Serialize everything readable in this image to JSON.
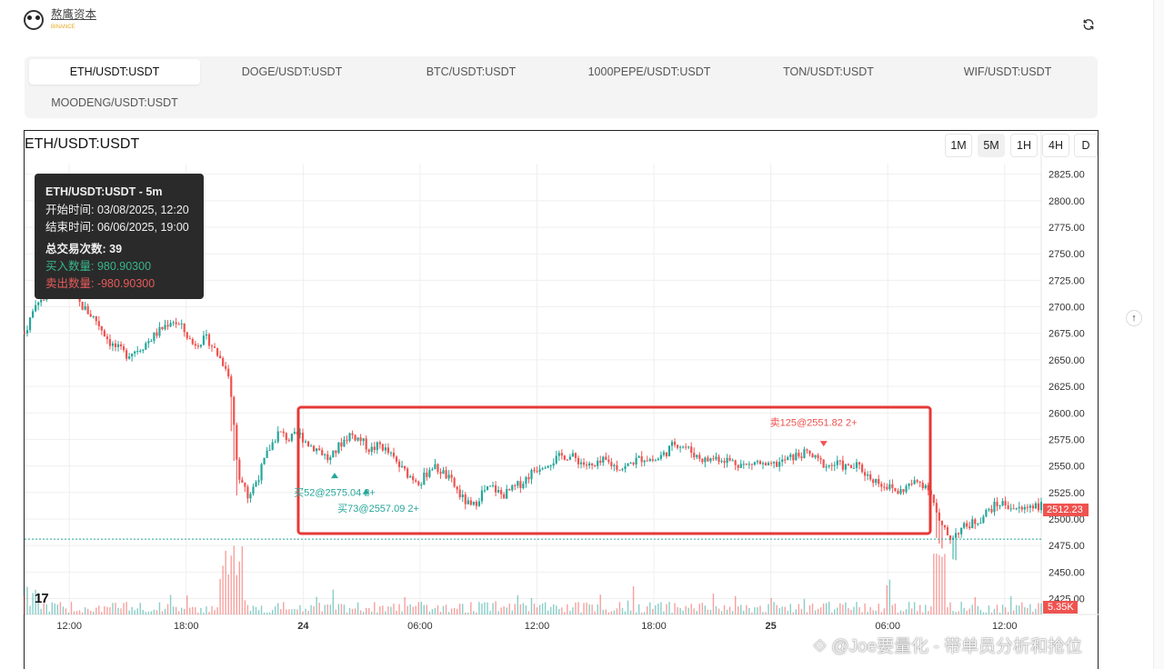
{
  "brand": {
    "name": "熬鹰资本",
    "badge": "BINANCE"
  },
  "tabs": [
    {
      "label": "ETH/USDT:USDT",
      "active": true
    },
    {
      "label": "DOGE/USDT:USDT"
    },
    {
      "label": "BTC/USDT:USDT"
    },
    {
      "label": "1000PEPE/USDT:USDT"
    },
    {
      "label": "TON/USDT:USDT"
    },
    {
      "label": "WIF/USDT:USDT"
    },
    {
      "label": "MOODENG/USDT:USDT"
    }
  ],
  "chart": {
    "title": "ETH/USDT:USDT",
    "timeframes": [
      "1M",
      "5M",
      "1H",
      "4H",
      "D"
    ],
    "active_timeframe": "5M",
    "last_price": "2512.23",
    "volume_label": "5.35K",
    "logo": "17"
  },
  "tooltip": {
    "title": "ETH/USDT:USDT - 5m",
    "start": "开始时间: 03/08/2025, 12:20",
    "end": "结束时间: 06/06/2025, 19:00",
    "trades": "总交易次数: 39",
    "buy": "买入数量: 980.90300",
    "sell": "卖出数量: -980.90300"
  },
  "colors": {
    "up": "#26a69a",
    "down": "#ef5350",
    "highlight": "#e53935",
    "dashed": "#26a69a"
  },
  "chart_data": {
    "type": "candlestick",
    "y_ticks": [
      "2825.00",
      "2800.00",
      "2775.00",
      "2750.00",
      "2725.00",
      "2700.00",
      "2675.00",
      "2650.00",
      "2625.00",
      "2600.00",
      "2575.00",
      "2550.00",
      "2525.00",
      "2500.00",
      "2475.00",
      "2450.00",
      "2425.00"
    ],
    "ylim": [
      2410,
      2835
    ],
    "x_ticks": [
      {
        "label": "12:00",
        "x": 0.044
      },
      {
        "label": "18:00",
        "x": 0.159
      },
      {
        "label": "24",
        "x": 0.274,
        "bold": true
      },
      {
        "label": "06:00",
        "x": 0.389
      },
      {
        "label": "12:00",
        "x": 0.504
      },
      {
        "label": "18:00",
        "x": 0.619
      },
      {
        "label": "25",
        "x": 0.734,
        "bold": true
      },
      {
        "label": "06:00",
        "x": 0.849
      },
      {
        "label": "12:00",
        "x": 0.964
      }
    ],
    "price_path": [
      [
        0,
        2675
      ],
      [
        0.012,
        2705
      ],
      [
        0.025,
        2715
      ],
      [
        0.04,
        2720
      ],
      [
        0.055,
        2702
      ],
      [
        0.07,
        2688
      ],
      [
        0.085,
        2665
      ],
      [
        0.1,
        2655
      ],
      [
        0.115,
        2662
      ],
      [
        0.13,
        2675
      ],
      [
        0.145,
        2688
      ],
      [
        0.155,
        2680
      ],
      [
        0.165,
        2665
      ],
      [
        0.18,
        2670
      ],
      [
        0.19,
        2655
      ],
      [
        0.2,
        2640
      ],
      [
        0.205,
        2600
      ],
      [
        0.21,
        2545
      ],
      [
        0.22,
        2520
      ],
      [
        0.23,
        2540
      ],
      [
        0.24,
        2565
      ],
      [
        0.25,
        2582
      ],
      [
        0.26,
        2575
      ],
      [
        0.27,
        2580
      ],
      [
        0.28,
        2570
      ],
      [
        0.29,
        2565
      ],
      [
        0.3,
        2555
      ],
      [
        0.31,
        2570
      ],
      [
        0.32,
        2580
      ],
      [
        0.33,
        2575
      ],
      [
        0.34,
        2565
      ],
      [
        0.35,
        2570
      ],
      [
        0.36,
        2560
      ],
      [
        0.37,
        2548
      ],
      [
        0.38,
        2540
      ],
      [
        0.39,
        2535
      ],
      [
        0.4,
        2550
      ],
      [
        0.41,
        2545
      ],
      [
        0.42,
        2535
      ],
      [
        0.43,
        2520
      ],
      [
        0.44,
        2510
      ],
      [
        0.45,
        2525
      ],
      [
        0.46,
        2530
      ],
      [
        0.47,
        2522
      ],
      [
        0.48,
        2528
      ],
      [
        0.49,
        2535
      ],
      [
        0.5,
        2545
      ],
      [
        0.51,
        2552
      ],
      [
        0.52,
        2555
      ],
      [
        0.53,
        2560
      ],
      [
        0.54,
        2558
      ],
      [
        0.55,
        2552
      ],
      [
        0.56,
        2548
      ],
      [
        0.57,
        2555
      ],
      [
        0.58,
        2550
      ],
      [
        0.59,
        2548
      ],
      [
        0.6,
        2555
      ],
      [
        0.61,
        2558
      ],
      [
        0.62,
        2555
      ],
      [
        0.63,
        2562
      ],
      [
        0.64,
        2572
      ],
      [
        0.65,
        2568
      ],
      [
        0.66,
        2560
      ],
      [
        0.67,
        2555
      ],
      [
        0.68,
        2558
      ],
      [
        0.69,
        2556
      ],
      [
        0.7,
        2553
      ],
      [
        0.71,
        2550
      ],
      [
        0.72,
        2554
      ],
      [
        0.73,
        2548
      ],
      [
        0.74,
        2552
      ],
      [
        0.75,
        2556
      ],
      [
        0.76,
        2560
      ],
      [
        0.77,
        2562
      ],
      [
        0.78,
        2555
      ],
      [
        0.79,
        2550
      ],
      [
        0.8,
        2552
      ],
      [
        0.81,
        2548
      ],
      [
        0.82,
        2550
      ],
      [
        0.83,
        2540
      ],
      [
        0.84,
        2535
      ],
      [
        0.85,
        2530
      ],
      [
        0.86,
        2525
      ],
      [
        0.87,
        2532
      ],
      [
        0.88,
        2535
      ],
      [
        0.89,
        2530
      ],
      [
        0.9,
        2495
      ],
      [
        0.91,
        2482
      ],
      [
        0.92,
        2490
      ],
      [
        0.93,
        2495
      ],
      [
        0.94,
        2500
      ],
      [
        0.95,
        2510
      ],
      [
        0.96,
        2515
      ],
      [
        0.97,
        2512
      ],
      [
        0.98,
        2508
      ],
      [
        0.99,
        2514
      ],
      [
        1.0,
        2512
      ]
    ],
    "dashed_price": 2481,
    "annotations": [
      {
        "text": "买52@2575.04 2+",
        "x": 0.305,
        "y": 2522,
        "side": "buy",
        "mx": 0.305,
        "my": 2541
      },
      {
        "text": "买73@2557.09 2+",
        "x": 0.348,
        "y": 2507,
        "side": "buy",
        "mx": 0.336,
        "my": 2526
      },
      {
        "text": "卖125@2551.82 2+",
        "x": 0.776,
        "y": 2588,
        "side": "sell",
        "mx": 0.786,
        "my": 2571
      }
    ]
  },
  "footer": {
    "watermark": "⟐ @Joe要量化 - 带单员分析和抢位"
  }
}
